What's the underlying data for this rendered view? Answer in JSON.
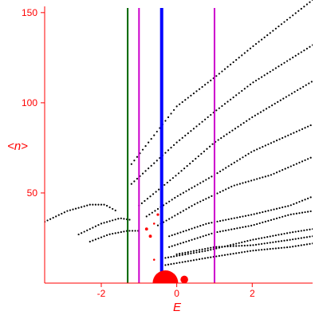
{
  "chart_data": {
    "type": "scatter",
    "title": "",
    "xlabel": "E",
    "ylabel": "<n>",
    "xlim": [
      -3.5,
      3.6
    ],
    "ylim": [
      0,
      157
    ],
    "grid": false,
    "x_ticks": [
      -2,
      0,
      2
    ],
    "y_ticks": [
      50,
      100,
      150
    ],
    "axis_color": "#ff0000",
    "vertical_lines": [
      {
        "x": -1.3,
        "color": "#006400",
        "width": "thin"
      },
      {
        "x": -1.0,
        "color": "#cc00cc",
        "width": "thin"
      },
      {
        "x": -0.4,
        "color": "#0000ff",
        "width": "thick"
      },
      {
        "x": 1.0,
        "color": "#cc00cc",
        "width": "thin"
      }
    ],
    "series": [
      {
        "color": "#000000",
        "marker": "dot",
        "curves": [
          {
            "x0": -3.5,
            "x1": -1.6,
            "pts": [
              [
                -3.5,
                34
              ],
              [
                -2.9,
                40
              ],
              [
                -2.3,
                43.5
              ],
              [
                -1.9,
                43.5
              ],
              [
                -1.6,
                40
              ]
            ]
          },
          {
            "x0": -2.6,
            "x1": -1.2,
            "pts": [
              [
                -2.6,
                27
              ],
              [
                -2.0,
                33
              ],
              [
                -1.5,
                36
              ],
              [
                -1.2,
                35
              ]
            ]
          },
          {
            "x0": -2.3,
            "x1": -1.0,
            "pts": [
              [
                -2.3,
                23
              ],
              [
                -1.8,
                27
              ],
              [
                -1.3,
                29
              ],
              [
                -1.0,
                29
              ]
            ]
          },
          {
            "x0": -1.2,
            "x1": 3.6,
            "pts": [
              [
                -1.2,
                66
              ],
              [
                0.0,
                98
              ],
              [
                1.0,
                114
              ],
              [
                2.0,
                131
              ],
              [
                3.6,
                157
              ]
            ]
          },
          {
            "x0": -1.2,
            "x1": 3.6,
            "pts": [
              [
                -1.2,
                55
              ],
              [
                0.0,
                78
              ],
              [
                1.0,
                95
              ],
              [
                2.0,
                111
              ],
              [
                3.6,
                132
              ]
            ]
          },
          {
            "x0": -1.0,
            "x1": 3.6,
            "pts": [
              [
                -1.0,
                43
              ],
              [
                0.0,
                60
              ],
              [
                1.0,
                78
              ],
              [
                2.0,
                92
              ],
              [
                3.6,
                112
              ]
            ]
          },
          {
            "x0": -0.8,
            "x1": 3.6,
            "pts": [
              [
                -0.8,
                37
              ],
              [
                0.0,
                48
              ],
              [
                1.0,
                60
              ],
              [
                2.0,
                73
              ],
              [
                3.6,
                88
              ]
            ]
          },
          {
            "x0": -0.5,
            "x1": 3.6,
            "pts": [
              [
                -0.5,
                32
              ],
              [
                0.5,
                44
              ],
              [
                1.5,
                54
              ],
              [
                2.5,
                60
              ],
              [
                3.6,
                70
              ]
            ]
          },
          {
            "x0": -0.2,
            "x1": 3.6,
            "pts": [
              [
                -0.2,
                26
              ],
              [
                0.8,
                33
              ],
              [
                2.0,
                38
              ],
              [
                3.0,
                43
              ],
              [
                3.6,
                48
              ]
            ]
          },
          {
            "x0": -0.2,
            "x1": 3.6,
            "pts": [
              [
                -0.2,
                20
              ],
              [
                1.0,
                28
              ],
              [
                2.0,
                32
              ],
              [
                3.0,
                38
              ],
              [
                3.6,
                40
              ]
            ]
          },
          {
            "x0": -0.3,
            "x1": 3.6,
            "pts": [
              [
                -0.3,
                14
              ],
              [
                0.8,
                18
              ],
              [
                2.0,
                24
              ],
              [
                3.0,
                28
              ],
              [
                3.6,
                30
              ]
            ]
          },
          {
            "x0": -0.3,
            "x1": 3.6,
            "pts": [
              [
                -0.3,
                10
              ],
              [
                0.8,
                14
              ],
              [
                2.0,
                18
              ],
              [
                3.0,
                20
              ],
              [
                3.6,
                22
              ]
            ]
          },
          {
            "x0": 0.0,
            "x1": 3.6,
            "pts": [
              [
                0.0,
                16
              ],
              [
                1.0,
                20
              ],
              [
                2.0,
                21
              ],
              [
                3.0,
                24
              ],
              [
                3.6,
                26
              ]
            ]
          }
        ]
      },
      {
        "color": "#ff0000",
        "marker": "weighted-dot",
        "points": [
          {
            "x": -0.3,
            "y": 0,
            "w": 10
          },
          {
            "x": 0.2,
            "y": 2,
            "w": 3
          },
          {
            "x": -0.8,
            "y": 30,
            "w": 1.2
          },
          {
            "x": -0.7,
            "y": 26,
            "w": 1.2
          },
          {
            "x": -0.5,
            "y": 38,
            "w": 1
          },
          {
            "x": -0.6,
            "y": 33,
            "w": 0.8
          },
          {
            "x": -0.6,
            "y": 13,
            "w": 0.8
          }
        ]
      }
    ]
  }
}
